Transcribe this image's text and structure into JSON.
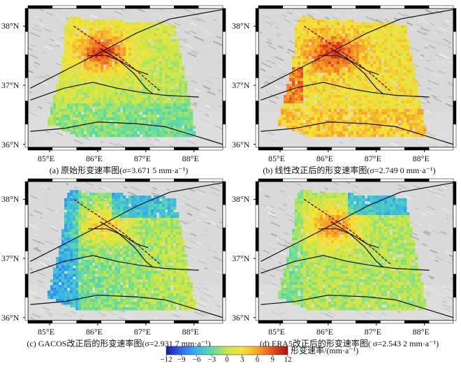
{
  "panels": [
    {
      "id": "a",
      "caption": "(a) 原始形变速率图(σ=3.671 5 mm·a⁻¹)",
      "scheme": "original"
    },
    {
      "id": "b",
      "caption": "(b) 线性改正后的形变速率图(σ=2.749 0 mm·a⁻¹)",
      "scheme": "linear"
    },
    {
      "id": "c",
      "caption": "(c) GACOS改正后的形变速率图(σ=2.931 7 mm·a⁻¹)",
      "scheme": "gacos"
    },
    {
      "id": "d",
      "caption": "(d) ERA5改正后的形变速率图( σ=2.543 2 mm·a⁻¹)",
      "scheme": "era5"
    }
  ],
  "axes": {
    "lat_labels": [
      "38°N",
      "37°N",
      "36°N"
    ],
    "lon_labels": [
      "85°E",
      "86°E",
      "87°E",
      "88°E"
    ]
  },
  "colorbar": {
    "ticks": [
      "−12",
      "−9",
      "−6",
      "−3",
      "0",
      "3",
      "6",
      "9",
      "12"
    ],
    "title": "形变速率/(mm·a⁻¹)",
    "min": -12,
    "max": 12,
    "colors": [
      "#1a1aa6",
      "#2c6cf0",
      "#38b6e8",
      "#5fdca0",
      "#c8e64a",
      "#f6e33a",
      "#f5a52a",
      "#e8501e",
      "#a81010"
    ]
  }
}
